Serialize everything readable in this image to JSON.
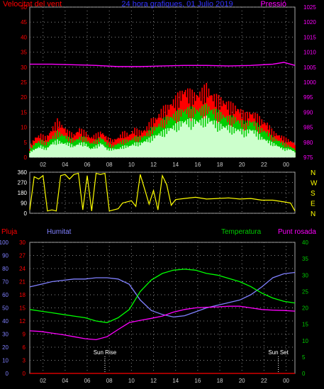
{
  "header": {
    "title": "24 hora grafiques, 01 Julio 2019",
    "left_label": "Velocitat del vent",
    "right_label": "Pressió"
  },
  "colors": {
    "background": "#000000",
    "wind_avg": "#ff0000",
    "wind_gust": "#00cc00",
    "wind_light": "#ccffcc",
    "pressure": "#ff00ff",
    "direction": "#ffff00",
    "humidity": "#8080ff",
    "temperature": "#00ff00",
    "dewpoint": "#ff00ff",
    "rain": "#ff0000",
    "grid": "#888888",
    "axis_wind": "#ff0000",
    "axis_pressure": "#ff00ff",
    "axis_humidity": "#8080ff",
    "axis_rain": "#ff0000",
    "axis_temp": "#00cc00"
  },
  "chart_data": [
    {
      "type": "area",
      "title": "24 hora grafiques, 01 Julio 2019",
      "ylabel": "Velocitat del vent",
      "ylabel_right": "Pressió",
      "xlabel": "",
      "x_ticks": [
        "02",
        "04",
        "06",
        "08",
        "10",
        "12",
        "14",
        "16",
        "18",
        "20",
        "22",
        "00"
      ],
      "y_ticks": [
        "0",
        "5",
        "10",
        "15",
        "20",
        "25",
        "30",
        "35",
        "40",
        "45",
        "50"
      ],
      "y_ticks_right": [
        "975",
        "980",
        "985",
        "990",
        "995",
        "1000",
        "1005",
        "1010",
        "1015",
        "1020",
        "1025"
      ],
      "ylim": [
        0,
        50
      ],
      "ylim_right": [
        975,
        1025
      ],
      "grid": true,
      "series": [
        {
          "name": "wind_gust",
          "color": "#ff0000",
          "x": [
            0,
            0.5,
            1,
            1.5,
            2,
            2.5,
            3,
            3.5,
            4,
            4.5,
            5,
            5.5,
            6,
            6.5,
            7,
            7.5,
            8,
            8.5,
            9,
            9.5,
            10,
            10.5,
            11,
            11.5,
            12,
            12.5,
            13,
            13.5,
            14,
            14.5,
            15,
            15.5,
            16,
            16.5,
            17,
            17.5,
            18,
            18.5,
            19,
            19.5,
            20,
            20.5,
            21,
            21.5,
            22,
            22.5,
            23,
            23.5,
            24
          ],
          "y": [
            4,
            7,
            8,
            7,
            10,
            13,
            11,
            9,
            8,
            10,
            9,
            7,
            8,
            9,
            7,
            6,
            7,
            9,
            8,
            10,
            9,
            10,
            13,
            14,
            17,
            18,
            20,
            22,
            24,
            23,
            22,
            23,
            25,
            22,
            21,
            20,
            19,
            18,
            17,
            15,
            16,
            15,
            13,
            12,
            9,
            8,
            7,
            6,
            5
          ]
        },
        {
          "name": "wind_avg",
          "color": "#00cc00",
          "x": [
            0,
            0.5,
            1,
            1.5,
            2,
            2.5,
            3,
            3.5,
            4,
            4.5,
            5,
            5.5,
            6,
            6.5,
            7,
            7.5,
            8,
            8.5,
            9,
            9.5,
            10,
            10.5,
            11,
            11.5,
            12,
            12.5,
            13,
            13.5,
            14,
            14.5,
            15,
            15.5,
            16,
            16.5,
            17,
            17.5,
            18,
            18.5,
            19,
            19.5,
            20,
            20.5,
            21,
            21.5,
            22,
            22.5,
            23,
            23.5,
            24
          ],
          "y": [
            3,
            5,
            6,
            5,
            7,
            9,
            8,
            7,
            6,
            7,
            7,
            5,
            6,
            7,
            5,
            4,
            5,
            6,
            6,
            7,
            7,
            8,
            10,
            11,
            13,
            14,
            15,
            16,
            17,
            17,
            17,
            17,
            18,
            17,
            16,
            15,
            14,
            14,
            13,
            12,
            13,
            12,
            10,
            9,
            7,
            6,
            5,
            4,
            3
          ]
        },
        {
          "name": "wind_light",
          "color": "#ccffcc",
          "x": [
            0,
            0.5,
            1,
            1.5,
            2,
            2.5,
            3,
            3.5,
            4,
            4.5,
            5,
            5.5,
            6,
            6.5,
            7,
            7.5,
            8,
            8.5,
            9,
            9.5,
            10,
            10.5,
            11,
            11.5,
            12,
            12.5,
            13,
            13.5,
            14,
            14.5,
            15,
            15.5,
            16,
            16.5,
            17,
            17.5,
            18,
            18.5,
            19,
            19.5,
            20,
            20.5,
            21,
            21.5,
            22,
            22.5,
            23,
            23.5,
            24
          ],
          "y": [
            2,
            3,
            4,
            3,
            5,
            6,
            5,
            5,
            4,
            5,
            5,
            3,
            4,
            5,
            3,
            3,
            3,
            4,
            4,
            5,
            5,
            6,
            7,
            8,
            9,
            10,
            11,
            12,
            13,
            13,
            13,
            13,
            14,
            13,
            12,
            11,
            11,
            10,
            10,
            9,
            10,
            9,
            7,
            6,
            5,
            4,
            3,
            3,
            2
          ]
        },
        {
          "name": "pressure",
          "color": "#ff00ff",
          "axis": "right",
          "x": [
            0,
            2,
            4,
            6,
            8,
            10,
            12,
            14,
            16,
            18,
            20,
            22,
            23,
            24
          ],
          "y": [
            1006,
            1006,
            1005.8,
            1005.6,
            1005.2,
            1005.2,
            1005.4,
            1005.6,
            1005.6,
            1005.4,
            1005.6,
            1006,
            1006.6,
            1005.6
          ]
        }
      ]
    },
    {
      "type": "line",
      "title": "",
      "ylabel": "",
      "x_ticks": [],
      "y_ticks": [
        "0",
        "90",
        "180",
        "270",
        "360"
      ],
      "compass_labels": [
        "N",
        "W",
        "S",
        "E",
        "N"
      ],
      "ylim": [
        0,
        360
      ],
      "grid": true,
      "series": [
        {
          "name": "direction",
          "color": "#ffff00",
          "x": [
            0,
            0.4,
            0.8,
            1.2,
            1.6,
            2,
            2.4,
            2.8,
            3.2,
            3.6,
            4,
            4.4,
            4.8,
            5.2,
            5.6,
            6,
            6.4,
            6.8,
            7.2,
            7.6,
            8,
            8.4,
            8.8,
            9.2,
            9.6,
            10,
            10.4,
            10.8,
            11.2,
            11.6,
            12,
            12.4,
            12.8,
            13.2,
            14,
            15,
            16,
            17,
            18,
            19,
            20,
            21,
            22,
            23,
            23.6,
            24
          ],
          "y": [
            30,
            320,
            300,
            330,
            20,
            30,
            20,
            330,
            340,
            300,
            340,
            350,
            30,
            330,
            20,
            350,
            340,
            350,
            20,
            30,
            40,
            90,
            100,
            110,
            60,
            340,
            210,
            80,
            200,
            30,
            330,
            250,
            70,
            120,
            130,
            140,
            125,
            130,
            135,
            125,
            130,
            115,
            115,
            100,
            90,
            20
          ]
        }
      ]
    },
    {
      "type": "line",
      "title": "",
      "ylabel": "Humitat",
      "ylabel_left2": "Pluja",
      "ylabel_right": "Temperatura",
      "ylabel_right2": "Punt rosada",
      "x_ticks": [
        "02",
        "04",
        "06",
        "08",
        "10",
        "12",
        "14",
        "16",
        "18",
        "20",
        "22",
        "00"
      ],
      "y_ticks_humidity": [
        "0",
        "10",
        "20",
        "30",
        "40",
        "50",
        "60",
        "70",
        "80",
        "90",
        "100"
      ],
      "y_ticks_rain": [
        "0",
        "3",
        "6",
        "9",
        "12",
        "15",
        "18",
        "21",
        "24",
        "27",
        "30"
      ],
      "y_ticks_temp": [
        "0",
        "5",
        "10",
        "15",
        "20",
        "25",
        "30",
        "35",
        "40"
      ],
      "ylim_humidity": [
        0,
        100
      ],
      "ylim_rain": [
        0,
        30
      ],
      "ylim_temp": [
        0,
        40
      ],
      "grid": true,
      "annotations": [
        "Sun Rise",
        "Sun Set"
      ],
      "series": [
        {
          "name": "humidity",
          "color": "#8080ff",
          "axis": "humidity",
          "x": [
            0,
            1,
            2,
            3,
            4,
            5,
            6,
            7,
            8,
            9,
            10,
            11,
            12,
            13,
            14,
            15,
            16,
            17,
            18,
            19,
            20,
            21,
            22,
            23,
            24
          ],
          "y": [
            66,
            68,
            70,
            71,
            72,
            72,
            73,
            73,
            72,
            68,
            56,
            48,
            45,
            43,
            44,
            47,
            50,
            52,
            54,
            56,
            60,
            66,
            73,
            76,
            77
          ]
        },
        {
          "name": "temperature",
          "color": "#00ff00",
          "axis": "temp",
          "x": [
            0,
            1,
            2,
            3,
            4,
            5,
            6,
            7,
            8,
            9,
            10,
            11,
            12,
            13,
            14,
            15,
            16,
            17,
            18,
            19,
            20,
            21,
            22,
            23,
            24
          ],
          "y": [
            19.5,
            19,
            18.5,
            18,
            17.5,
            17,
            16,
            15.5,
            17,
            19.5,
            25,
            28.5,
            30.5,
            31.5,
            31.8,
            31.5,
            30.5,
            30,
            29,
            28,
            26.5,
            24.5,
            23,
            22,
            21.5
          ]
        },
        {
          "name": "dewpoint",
          "color": "#ff00ff",
          "axis": "temp",
          "x": [
            0,
            1,
            2,
            3,
            4,
            5,
            6,
            7,
            8,
            9,
            10,
            11,
            12,
            13,
            14,
            15,
            16,
            17,
            18,
            19,
            20,
            21,
            22,
            23,
            24
          ],
          "y": [
            13,
            12.8,
            12.3,
            11.8,
            11.2,
            10.6,
            10.3,
            11.2,
            13.4,
            15.5,
            16.2,
            16.8,
            17.5,
            18.7,
            19.5,
            20,
            20.2,
            20.3,
            20.5,
            20.5,
            20,
            19.5,
            19.3,
            19.2,
            19
          ]
        },
        {
          "name": "rain",
          "color": "#ff0000",
          "axis": "rain",
          "x": [
            0,
            24
          ],
          "y": [
            0,
            0
          ]
        }
      ]
    }
  ],
  "labels": {
    "compass": [
      "N",
      "W",
      "S",
      "E",
      "N"
    ],
    "bottom_pluja": "Pluja",
    "bottom_humitat": "Humitat",
    "bottom_temperatura": "Temperatura",
    "bottom_punt_rosada": "Punt rosada",
    "sunrise": "Sun Rise",
    "sunset": "Sun Set"
  }
}
